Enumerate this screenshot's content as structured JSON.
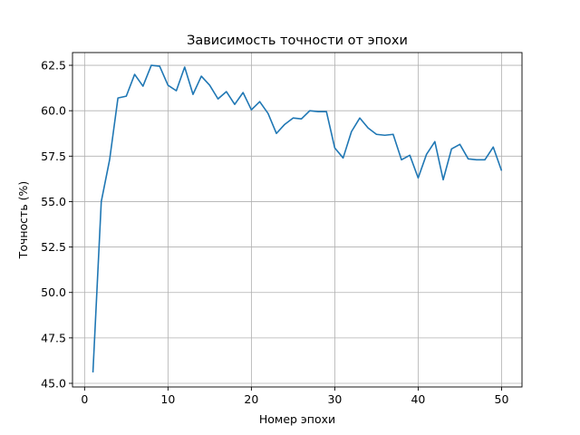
{
  "chart_data": {
    "type": "line",
    "title": "Зависимость точности от эпохи",
    "xlabel": "Номер эпохи",
    "ylabel": "Точность (%)",
    "xlim": [
      -1.45,
      52.45
    ],
    "ylim": [
      44.8,
      63.2
    ],
    "xticks": [
      0,
      10,
      20,
      30,
      40,
      50
    ],
    "yticks": [
      45.0,
      47.5,
      50.0,
      52.5,
      55.0,
      57.5,
      60.0,
      62.5
    ],
    "xtick_labels": [
      "0",
      "10",
      "20",
      "30",
      "40",
      "50"
    ],
    "ytick_labels": [
      "45.0",
      "47.5",
      "50.0",
      "52.5",
      "55.0",
      "57.5",
      "60.0",
      "62.5"
    ],
    "grid": true,
    "series": [
      {
        "color": "#1f77b4",
        "x": [
          1,
          2,
          3,
          4,
          5,
          6,
          7,
          8,
          9,
          10,
          11,
          12,
          13,
          14,
          15,
          16,
          17,
          18,
          19,
          20,
          21,
          22,
          23,
          24,
          25,
          26,
          27,
          28,
          29,
          30,
          31,
          32,
          33,
          34,
          35,
          36,
          37,
          38,
          39,
          40,
          41,
          42,
          43,
          44,
          45,
          46,
          47,
          48,
          49,
          50
        ],
        "y": [
          45.6,
          55.0,
          57.3,
          60.7,
          60.8,
          62.0,
          61.35,
          62.5,
          62.45,
          61.4,
          61.1,
          62.4,
          60.9,
          61.9,
          61.4,
          60.65,
          61.05,
          60.35,
          61.0,
          60.05,
          60.5,
          59.85,
          58.75,
          59.25,
          59.6,
          59.55,
          60.0,
          59.95,
          59.95,
          57.95,
          57.4,
          58.85,
          59.6,
          59.05,
          58.7,
          58.65,
          58.7,
          57.3,
          57.55,
          56.3,
          57.6,
          58.3,
          56.2,
          57.9,
          58.15,
          57.35,
          57.3,
          57.3,
          58.0,
          56.7
        ]
      }
    ]
  }
}
